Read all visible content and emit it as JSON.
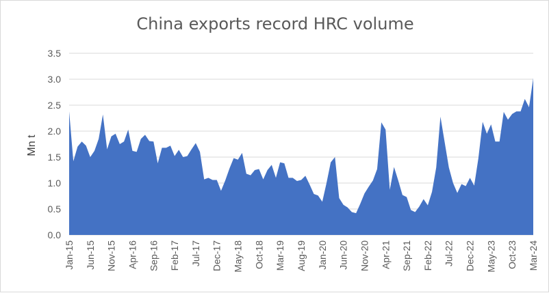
{
  "chart_data": {
    "type": "area",
    "title": "China exports record HRC volume",
    "ylabel": "Mn t",
    "xlabel": "",
    "ylim": [
      0,
      3.5
    ],
    "yticks": [
      "0.0",
      "0.5",
      "1.0",
      "1.5",
      "2.0",
      "2.5",
      "3.0",
      "3.5"
    ],
    "xtick_labels": [
      "Jan-15",
      "Jun-15",
      "Nov-15",
      "Apr-16",
      "Sep-16",
      "Feb-17",
      "Jul-17",
      "Dec-17",
      "May-18",
      "Oct-18",
      "Mar-19",
      "Aug-19",
      "Jan-20",
      "Jun-20",
      "Nov-20",
      "Apr-21",
      "Sep-21",
      "Feb-22",
      "Jul-22",
      "Dec-22",
      "May-23",
      "Oct-23",
      "Mar-24"
    ],
    "grid": true,
    "legend": "none",
    "color": "#4472c4",
    "series": [
      {
        "values": [
          2.38,
          1.42,
          1.7,
          1.8,
          1.72,
          1.5,
          1.62,
          1.85,
          2.32,
          1.65,
          1.9,
          1.95,
          1.75,
          1.8,
          2.03,
          1.62,
          1.6,
          1.85,
          1.93,
          1.81,
          1.8,
          1.38,
          1.68,
          1.68,
          1.72,
          1.52,
          1.64,
          1.5,
          1.52,
          1.65,
          1.77,
          1.6,
          1.07,
          1.1,
          1.06,
          1.06,
          0.85,
          1.05,
          1.28,
          1.48,
          1.45,
          1.58,
          1.18,
          1.15,
          1.25,
          1.27,
          1.07,
          1.25,
          1.35,
          1.1,
          1.4,
          1.38,
          1.1,
          1.1,
          1.04,
          1.06,
          1.14,
          0.97,
          0.79,
          0.76,
          0.64,
          1.0,
          1.4,
          1.5,
          0.71,
          0.58,
          0.53,
          0.44,
          0.42,
          0.6,
          0.8,
          0.93,
          1.05,
          1.27,
          2.17,
          2.03,
          0.87,
          1.31,
          1.05,
          0.77,
          0.73,
          0.48,
          0.44,
          0.55,
          0.69,
          0.57,
          0.83,
          1.3,
          2.28,
          1.79,
          1.3,
          1.0,
          0.81,
          0.98,
          0.94,
          1.1,
          0.95,
          1.48,
          2.18,
          1.95,
          2.13,
          1.8,
          1.8,
          2.37,
          2.22,
          2.33,
          2.38,
          2.38,
          2.62,
          2.46,
          3.02
        ]
      }
    ]
  }
}
